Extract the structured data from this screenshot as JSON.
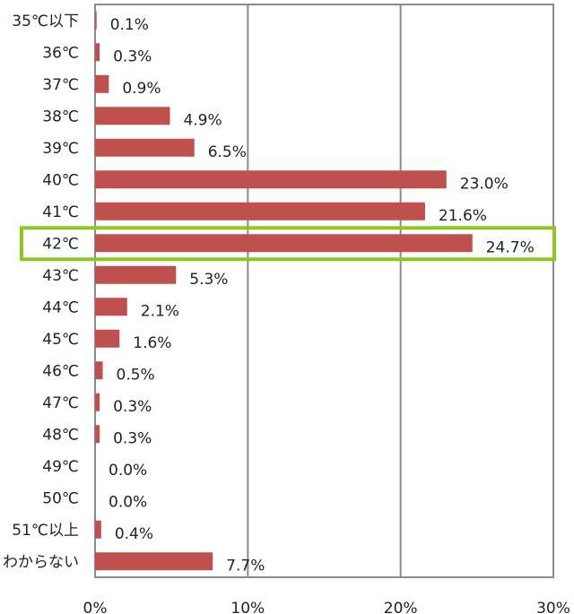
{
  "chart_data": {
    "type": "bar",
    "orientation": "horizontal",
    "title": "",
    "xlabel": "",
    "ylabel": "",
    "xlim": [
      0,
      30
    ],
    "x_ticks": [
      "0%",
      "10%",
      "20%",
      "30%"
    ],
    "grid": true,
    "categories": [
      "35℃以下",
      "36℃",
      "37℃",
      "38℃",
      "39℃",
      "40℃",
      "41℃",
      "42℃",
      "43℃",
      "44℃",
      "45℃",
      "46℃",
      "47℃",
      "48℃",
      "49℃",
      "50℃",
      "51℃以上",
      "わからない"
    ],
    "values": [
      0.1,
      0.3,
      0.9,
      4.9,
      6.5,
      23.0,
      21.6,
      24.7,
      5.3,
      2.1,
      1.6,
      0.5,
      0.3,
      0.3,
      0.0,
      0.0,
      0.4,
      7.7
    ],
    "value_labels": [
      "0.1%",
      "0.3%",
      "0.9%",
      "4.9%",
      "6.5%",
      "23.0%",
      "21.6%",
      "24.7%",
      "5.3%",
      "2.1%",
      "1.6%",
      "0.5%",
      "0.3%",
      "0.3%",
      "0.0%",
      "0.0%",
      "0.4%",
      "7.7%"
    ],
    "highlight_category": "42℃",
    "colors": {
      "bar": "#c0504d",
      "highlight": "#8cc81e",
      "grid": "#8c8c8c"
    }
  }
}
